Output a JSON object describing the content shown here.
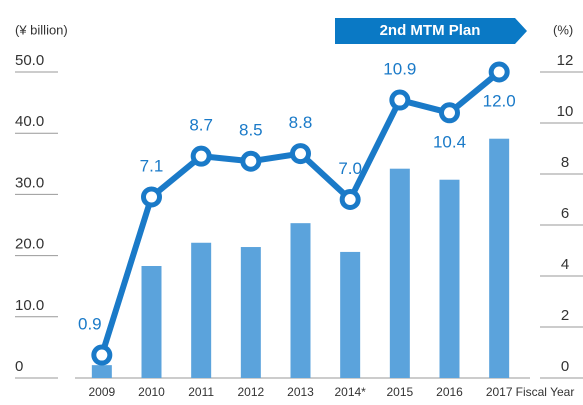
{
  "chart_data": {
    "type": "bar-line",
    "y_label": "(¥ billion)",
    "y2_label": "(%)",
    "x_label": "Fiscal Year",
    "annotation": "2nd MTM Plan",
    "categories": [
      "2009",
      "2010",
      "2011",
      "2012",
      "2013",
      "2014*",
      "2015",
      "2016",
      "2017"
    ],
    "series": [
      {
        "type": "bar",
        "color": "#5ba3dc",
        "values": [
          2.1,
          18.3,
          22.1,
          21.4,
          25.3,
          20.6,
          34.2,
          32.4,
          39.1
        ]
      },
      {
        "type": "line",
        "axis": "y2",
        "color": "#1a7ac8",
        "values": [
          0.9,
          7.1,
          8.7,
          8.5,
          8.8,
          7.0,
          10.9,
          10.4,
          12.0
        ],
        "value_labels": [
          "0.9",
          "7.1",
          "8.7",
          "8.5",
          "8.8",
          "7.0",
          "10.9",
          "10.4",
          "12.0"
        ]
      }
    ],
    "ylim": [
      0,
      50
    ],
    "yticks": [
      0,
      {
        "value": 10,
        "label": "10.0"
      },
      {
        "value": 20,
        "label": "20.0"
      },
      {
        "value": 30,
        "label": "30.0"
      },
      {
        "value": 40,
        "label": "40.0"
      },
      {
        "value": 50,
        "label": "50.0"
      }
    ],
    "y2lim": [
      0,
      12
    ],
    "y2ticks": [
      0,
      2,
      4,
      6,
      8,
      10,
      12
    ]
  }
}
